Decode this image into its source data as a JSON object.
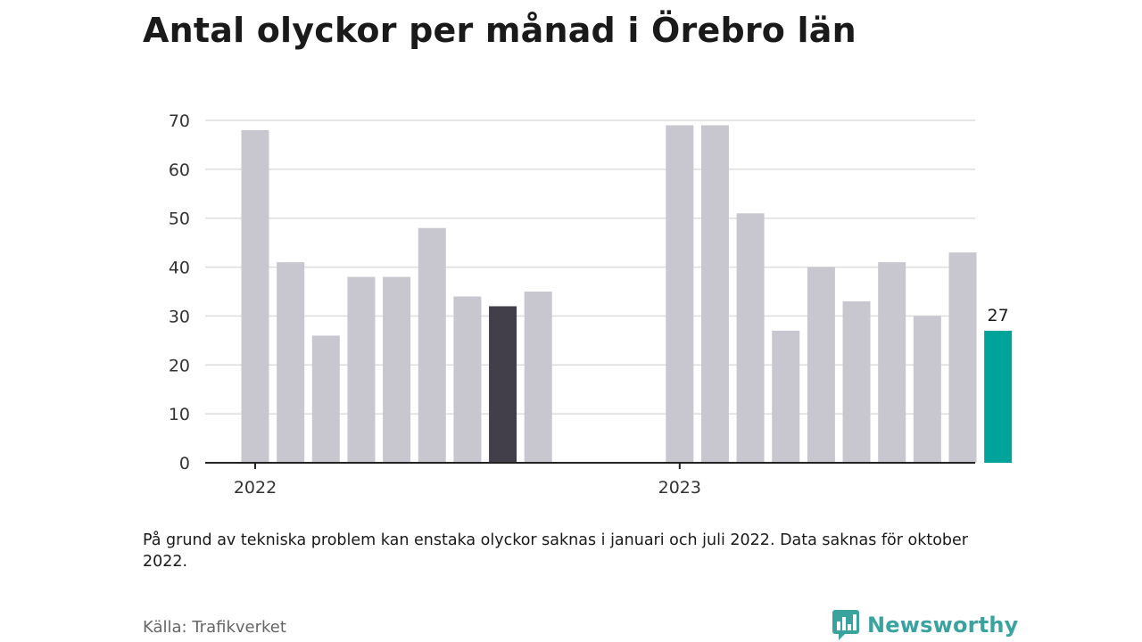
{
  "title": "Antal olyckor per månad i Örebro län",
  "note": "På grund av tekniska problem kan enstaka olyckor saknas i januari och juli 2022. Data saknas för oktober 2022.",
  "source": "Källa: Trafikverket",
  "brand": {
    "name": "Newsworthy",
    "icon": "newsworthy-logo-icon"
  },
  "colors": {
    "default": "#c8c7cf",
    "dark": "#423f4b",
    "highlight": "#00a39a"
  },
  "chart_data": {
    "type": "bar",
    "title": "Antal olyckor per månad i Örebro län",
    "ylim": [
      0,
      70
    ],
    "yticks": [
      0,
      10,
      20,
      30,
      40,
      50,
      60,
      70
    ],
    "grid": true,
    "categories": [
      "2022-01",
      "2022-02",
      "2022-03",
      "2022-04",
      "2022-05",
      "2022-06",
      "2022-07",
      "2022-08",
      "2022-09",
      "2022-10",
      "2022-11",
      "2022-12",
      "2023-01",
      "2023-02",
      "2023-03",
      "2023-04",
      "2023-05",
      "2023-06",
      "2023-07",
      "2023-08",
      "2023-09",
      "2023-10"
    ],
    "values": [
      68,
      41,
      26,
      38,
      38,
      48,
      34,
      32,
      35,
      null,
      null,
      null,
      69,
      69,
      51,
      27,
      40,
      33,
      41,
      30,
      43,
      27
    ],
    "x_tick_labels": [
      {
        "label": "2022",
        "index": 0
      },
      {
        "label": "2023",
        "index": 12
      }
    ],
    "highlight": {
      "dark_index": 7,
      "highlight_index": 21,
      "data_label": "27"
    }
  }
}
